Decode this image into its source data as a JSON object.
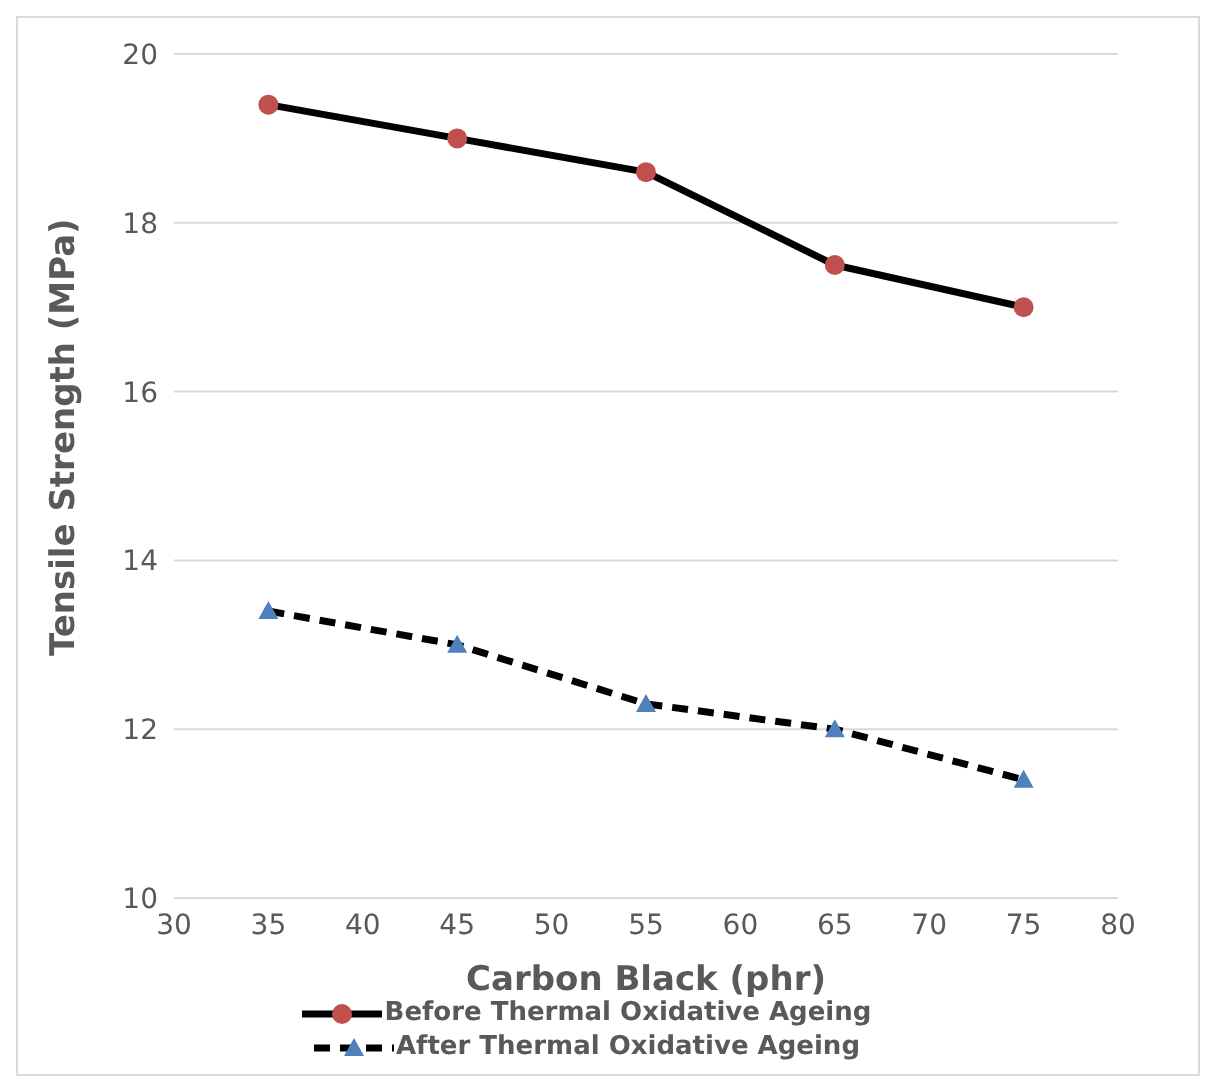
{
  "chart_data": {
    "type": "line",
    "xlabel": "Carbon Black (phr)",
    "ylabel": "Tensile Strength (MPa)",
    "x": [
      35,
      45,
      55,
      65,
      75
    ],
    "series": [
      {
        "name": "Before Thermal Oxidative Ageing",
        "color": "#000000",
        "colors": [
          "#c0504d",
          "#c0504d",
          "#c0504d",
          "#c0504d",
          "#c0504d"
        ],
        "marker": "circle",
        "line_style": "solid",
        "values": [
          19.4,
          19.0,
          18.6,
          17.5,
          17.0
        ]
      },
      {
        "name": "After Thermal Oxidative Ageing",
        "color": "#000000",
        "colors": [
          "#4f81bd",
          "#4f81bd",
          "#4f81bd",
          "#4f81bd",
          "#4f81bd"
        ],
        "marker": "triangle",
        "line_style": "dashed",
        "values": [
          13.4,
          13.0,
          12.3,
          12.0,
          11.4
        ]
      }
    ],
    "xlim": [
      30,
      80
    ],
    "xticks": [
      30,
      35,
      40,
      45,
      50,
      55,
      60,
      65,
      70,
      75,
      80
    ],
    "ylim": [
      10,
      20
    ],
    "yticks": [
      10,
      12,
      14,
      16,
      18,
      20
    ],
    "grid": "y",
    "legend": "bottom"
  }
}
